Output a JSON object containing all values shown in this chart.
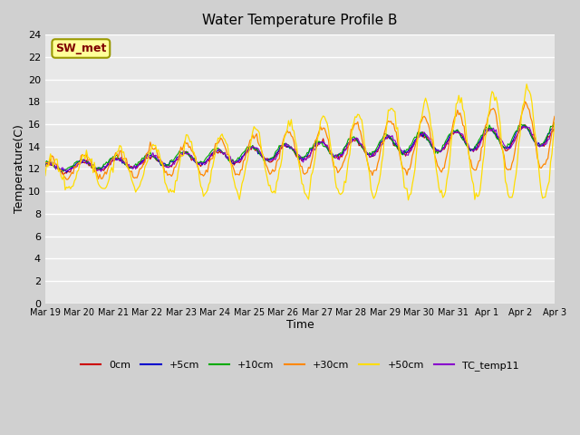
{
  "title": "Water Temperature Profile B",
  "xlabel": "Time",
  "ylabel": "Temperature(C)",
  "ylim": [
    0,
    24
  ],
  "yticks": [
    0,
    2,
    4,
    6,
    8,
    10,
    12,
    14,
    16,
    18,
    20,
    22,
    24
  ],
  "bg_color": "#e8e8e8",
  "plot_bg": "#e8e8e8",
  "grid_color": "white",
  "annotation_text": "SW_met",
  "annotation_bg": "#ffff99",
  "annotation_border": "#999900",
  "annotation_fg": "#800000",
  "series_colors": {
    "0cm": "#cc0000",
    "+5cm": "#0000cc",
    "+10cm": "#00aa00",
    "+30cm": "#ff8800",
    "+50cm": "#ffdd00",
    "TC_temp11": "#8800cc"
  },
  "date_labels": [
    "Mar 19",
    "Mar 20",
    "Mar 21",
    "Mar 22",
    "Mar 23",
    "Mar 24",
    "Mar 25",
    "Mar 26",
    "Mar 27",
    "Mar 28",
    "Mar 29",
    "Mar 30",
    "Mar 31",
    "Apr 1",
    "Apr 2",
    "Apr 3"
  ],
  "n_days": 16
}
